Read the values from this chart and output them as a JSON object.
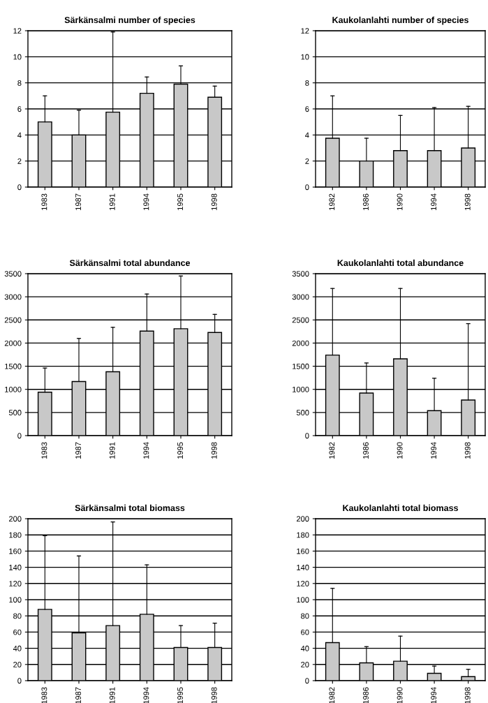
{
  "chart_data": [
    {
      "type": "bar",
      "title": "Särkänsalmi number of species",
      "categories": [
        "1983",
        "1987",
        "1991",
        "1994",
        "1995",
        "1998"
      ],
      "values": [
        5,
        4,
        5.75,
        7.2,
        7.9,
        6.9
      ],
      "errors": [
        [
          5,
          7
        ],
        [
          4,
          5.9
        ],
        [
          5.75,
          11.9
        ],
        [
          7.2,
          8.45
        ],
        [
          7.9,
          9.3
        ],
        [
          6.9,
          7.75
        ]
      ],
      "color": "#c8c8c8",
      "ylim": [
        0,
        12
      ],
      "yticks": [
        0,
        2,
        4,
        6,
        8,
        10,
        12
      ],
      "grid": "y"
    },
    {
      "type": "bar",
      "title": "Kaukolanlahti number of species",
      "categories": [
        "1982",
        "1986",
        "1990",
        "1994",
        "1998"
      ],
      "values": [
        3.75,
        2,
        2.8,
        2.8,
        3
      ],
      "errors": [
        [
          3.75,
          7
        ],
        [
          2,
          3.75
        ],
        [
          2.8,
          5.5
        ],
        [
          2.8,
          6.1
        ],
        [
          3,
          6.2
        ]
      ],
      "color": "#c8c8c8",
      "ylim": [
        0,
        12
      ],
      "yticks": [
        0,
        2,
        4,
        6,
        8,
        10,
        12
      ],
      "grid": "y"
    },
    {
      "type": "bar",
      "title": "Särkänsalmi total abundance",
      "categories": [
        "1983",
        "1987",
        "1991",
        "1994",
        "1995",
        "1998"
      ],
      "values": [
        940,
        1170,
        1380,
        2260,
        2310,
        2230
      ],
      "errors": [
        [
          940,
          1460
        ],
        [
          1170,
          2100
        ],
        [
          1380,
          2340
        ],
        [
          2260,
          3060
        ],
        [
          2310,
          3450
        ],
        [
          2230,
          2620
        ]
      ],
      "color": "#c8c8c8",
      "ylim": [
        0,
        3500
      ],
      "yticks": [
        0,
        500,
        1000,
        1500,
        2000,
        2500,
        3000,
        3500
      ],
      "grid": "y"
    },
    {
      "type": "bar",
      "title": "Kaukolanlahti total abundance",
      "categories": [
        "1982",
        "1986",
        "1990",
        "1994",
        "1998"
      ],
      "values": [
        1740,
        920,
        1660,
        540,
        770
      ],
      "errors": [
        [
          1740,
          3180
        ],
        [
          920,
          1570
        ],
        [
          1660,
          3180
        ],
        [
          540,
          1240
        ],
        [
          770,
          2420
        ]
      ],
      "color": "#c8c8c8",
      "ylim": [
        0,
        3500
      ],
      "yticks": [
        0,
        500,
        1000,
        1500,
        2000,
        2500,
        3000,
        3500
      ],
      "grid": "y"
    },
    {
      "type": "bar",
      "title": "Särkänsalmi total biomass",
      "categories": [
        "1983",
        "1987",
        "1991",
        "1994",
        "1995",
        "1998"
      ],
      "values": [
        88,
        59,
        68,
        82,
        41,
        41
      ],
      "errors": [
        [
          88,
          179
        ],
        [
          59,
          154
        ],
        [
          68,
          196
        ],
        [
          82,
          143
        ],
        [
          41,
          68
        ],
        [
          41,
          71
        ]
      ],
      "color": "#c8c8c8",
      "ylim": [
        0,
        200
      ],
      "yticks": [
        0,
        20,
        40,
        60,
        80,
        100,
        120,
        140,
        160,
        180,
        200
      ],
      "grid": "y"
    },
    {
      "type": "bar",
      "title": "Kaukolanlahti total biomass",
      "categories": [
        "1982",
        "1986",
        "1990",
        "1994",
        "1998"
      ],
      "values": [
        47,
        22,
        24,
        9,
        5
      ],
      "errors": [
        [
          47,
          114
        ],
        [
          22,
          42
        ],
        [
          24,
          55
        ],
        [
          9,
          18
        ],
        [
          5,
          14
        ]
      ],
      "color": "#c8c8c8",
      "ylim": [
        0,
        200
      ],
      "yticks": [
        0,
        20,
        40,
        60,
        80,
        100,
        120,
        140,
        160,
        180,
        200
      ],
      "grid": "y"
    }
  ]
}
